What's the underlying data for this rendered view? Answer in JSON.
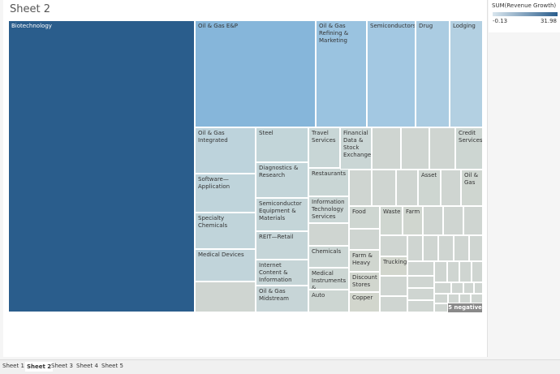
{
  "sheet_title": "Sheet 2",
  "legend": {
    "title": "SUM(Revenue Growth)",
    "min": "-0.13",
    "max": "31.98"
  },
  "tiles": [
    {
      "label": "Biotechnology",
      "color": "#2a5d8c"
    },
    {
      "label": "Oil & Gas E&P",
      "color": "#86b6da"
    },
    {
      "label": "Oil & Gas Refining & Marketing",
      "color": "#9ac3e0"
    },
    {
      "label": "Semiconductors",
      "color": "#a3c8e2"
    },
    {
      "label": "Drug",
      "color": "#abcce2"
    },
    {
      "label": "Lodging",
      "color": "#b3d0e2"
    },
    {
      "label": "Oil & Gas Integrated",
      "color": "#bdd3dc"
    },
    {
      "label": "Software—Application",
      "color": "#bfd4db"
    },
    {
      "label": "Specialty Chemicals",
      "color": "#c0d4da"
    },
    {
      "label": "Medical Devices",
      "color": "#c1d4da"
    },
    {
      "label": "Steel",
      "color": "#c2d5d9"
    },
    {
      "label": "Diagnostics & Research",
      "color": "#c3d5d9"
    },
    {
      "label": "Semiconductor Equipment & Materials",
      "color": "#c4d5d8"
    },
    {
      "label": "REIT—Retail",
      "color": "#c5d5d8"
    },
    {
      "label": "Internet Content & Information",
      "color": "#c6d5d7"
    },
    {
      "label": "Oil & Gas Midstream",
      "color": "#c7d5d7"
    },
    {
      "label": "Travel Services",
      "color": "#c8d6d6"
    },
    {
      "label": "Restaurants",
      "color": "#c9d6d5"
    },
    {
      "label": "Information Technology Services",
      "color": "#cad6d5"
    },
    {
      "label": "Chemicals",
      "color": "#cbd6d4"
    },
    {
      "label": "Medical Instruments &",
      "color": "#ccd6d3"
    },
    {
      "label": "Auto",
      "color": "#cdd6d2"
    },
    {
      "label": "Financial Data & Stock Exchanges",
      "color": "#cad6d5"
    },
    {
      "label": "Credit Services",
      "color": "#cdd6d2"
    },
    {
      "label": "Asset",
      "color": "#ced6d1"
    },
    {
      "label": "Oil & Gas",
      "color": "#cfd6d0"
    },
    {
      "label": "Food",
      "color": "#ced6d1"
    },
    {
      "label": "Waste",
      "color": "#cfd6d0"
    },
    {
      "label": "Farm",
      "color": "#d0d6cf"
    },
    {
      "label": "Farm & Heavy",
      "color": "#d0d6cf"
    },
    {
      "label": "Discount Stores",
      "color": "#d1d6ce"
    },
    {
      "label": "Copper",
      "color": "#d2d6cd"
    },
    {
      "label": "Trucking",
      "color": "#d2d6cd"
    }
  ],
  "badge": "5 negative",
  "tabs": [
    "Sheet 1",
    "Sheet 2",
    "Sheet 3",
    "Sheet 4",
    "Sheet 5"
  ]
}
